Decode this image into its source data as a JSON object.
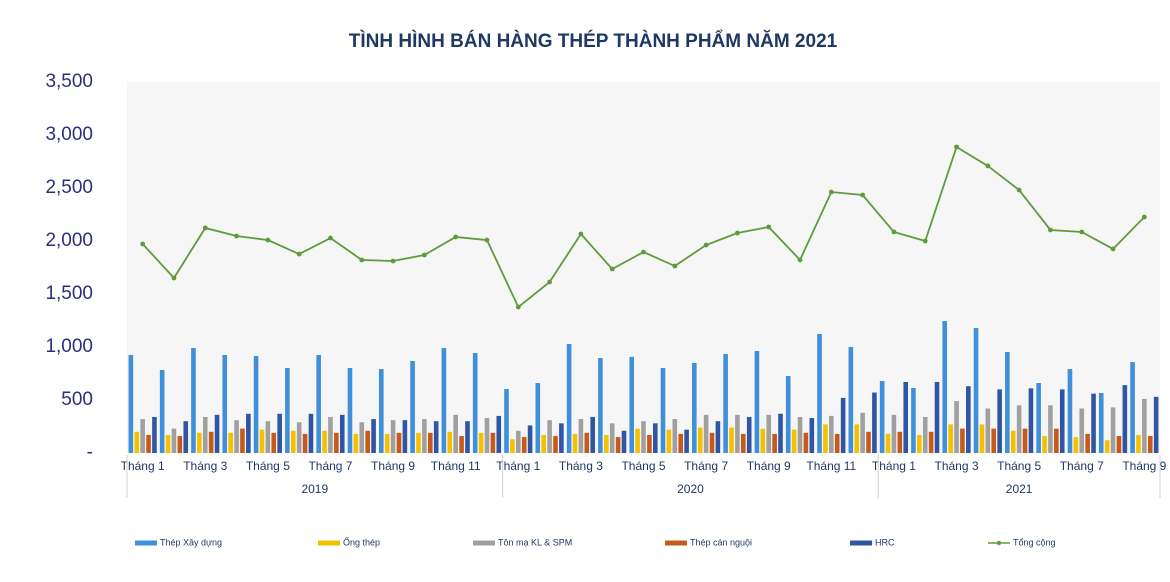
{
  "chart_data": {
    "type": "bar-line",
    "title": "TÌNH HÌNH BÁN HÀNG THÉP THÀNH PHẨM NĂM 2021",
    "groups": [
      {
        "label": "2019",
        "categories": [
          "Tháng 1",
          null,
          "Tháng 3",
          null,
          "Tháng 5",
          null,
          "Tháng 7",
          null,
          "Tháng 9",
          null,
          "Tháng 11",
          null
        ]
      },
      {
        "label": "2020",
        "categories": [
          "Tháng 1",
          null,
          "Tháng 3",
          null,
          "Tháng 5",
          null,
          "Tháng 7",
          null,
          "Tháng 9",
          null,
          "Tháng 11",
          null
        ]
      },
      {
        "label": "2021",
        "categories": [
          "Tháng 1",
          null,
          "Tháng 3",
          null,
          "Tháng 5",
          null,
          "Tháng 7",
          null,
          "Tháng 9"
        ]
      }
    ],
    "ylim": [
      0,
      3500
    ],
    "yticks": [
      {
        "value": 0,
        "label": "-"
      },
      {
        "value": 500,
        "label": "500"
      },
      {
        "value": 1000,
        "label": "1,000"
      },
      {
        "value": 1500,
        "label": "1,500"
      },
      {
        "value": 2000,
        "label": "2,000"
      },
      {
        "value": 2500,
        "label": "2,500"
      },
      {
        "value": 3000,
        "label": "3,000"
      },
      {
        "value": 3500,
        "label": "3,500"
      }
    ],
    "series": [
      {
        "name": "Thép Xây dựng",
        "type": "bar",
        "color": "#3f8fdb",
        "values": [
          925,
          783,
          990,
          925,
          915,
          802,
          925,
          802,
          792,
          868,
          990,
          943,
          604,
          660,
          1028,
          896,
          906,
          802,
          849,
          934,
          962,
          726,
          1123,
          1000,
          679,
          613,
          1245,
          1179,
          953,
          660,
          792,
          566,
          858
        ]
      },
      {
        "name": "Ống thép",
        "type": "bar",
        "color": "#f5c000",
        "values": [
          200,
          170,
          190,
          190,
          220,
          210,
          210,
          180,
          180,
          190,
          200,
          190,
          130,
          170,
          180,
          170,
          230,
          220,
          240,
          240,
          230,
          220,
          270,
          270,
          180,
          170,
          270,
          270,
          210,
          160,
          150,
          120,
          170
        ]
      },
      {
        "name": "Tôn mạ KL & SPM",
        "type": "bar",
        "color": "#a0a0a0",
        "values": [
          320,
          230,
          340,
          310,
          300,
          290,
          340,
          290,
          310,
          320,
          360,
          330,
          210,
          310,
          320,
          280,
          300,
          320,
          360,
          360,
          360,
          340,
          350,
          380,
          360,
          340,
          490,
          420,
          450,
          450,
          420,
          430,
          510
        ]
      },
      {
        "name": "Thép cán nguội",
        "type": "bar",
        "color": "#c55a1a",
        "values": [
          170,
          160,
          200,
          230,
          190,
          180,
          190,
          210,
          190,
          190,
          160,
          190,
          150,
          160,
          190,
          150,
          170,
          180,
          190,
          180,
          180,
          190,
          180,
          200,
          200,
          200,
          230,
          230,
          230,
          230,
          180,
          160,
          160
        ]
      },
      {
        "name": "HRC",
        "type": "bar",
        "color": "#2f55a4",
        "values": [
          340,
          300,
          360,
          370,
          370,
          370,
          360,
          320,
          310,
          300,
          300,
          350,
          260,
          280,
          340,
          210,
          280,
          220,
          300,
          340,
          370,
          330,
          520,
          570,
          670,
          670,
          630,
          600,
          610,
          600,
          560,
          640,
          530
        ]
      },
      {
        "name": "Tổng cộng",
        "type": "line",
        "color": "#5f9b3c",
        "values": [
          1972,
          1651,
          2123,
          2047,
          2009,
          1877,
          2028,
          1821,
          1811,
          1868,
          2038,
          2009,
          1377,
          1613,
          2066,
          1736,
          1896,
          1764,
          1962,
          2075,
          2132,
          1821,
          2462,
          2434,
          2085,
          2000,
          2887,
          2708,
          2481,
          2104,
          2085,
          1925,
          2226
        ]
      }
    ]
  }
}
